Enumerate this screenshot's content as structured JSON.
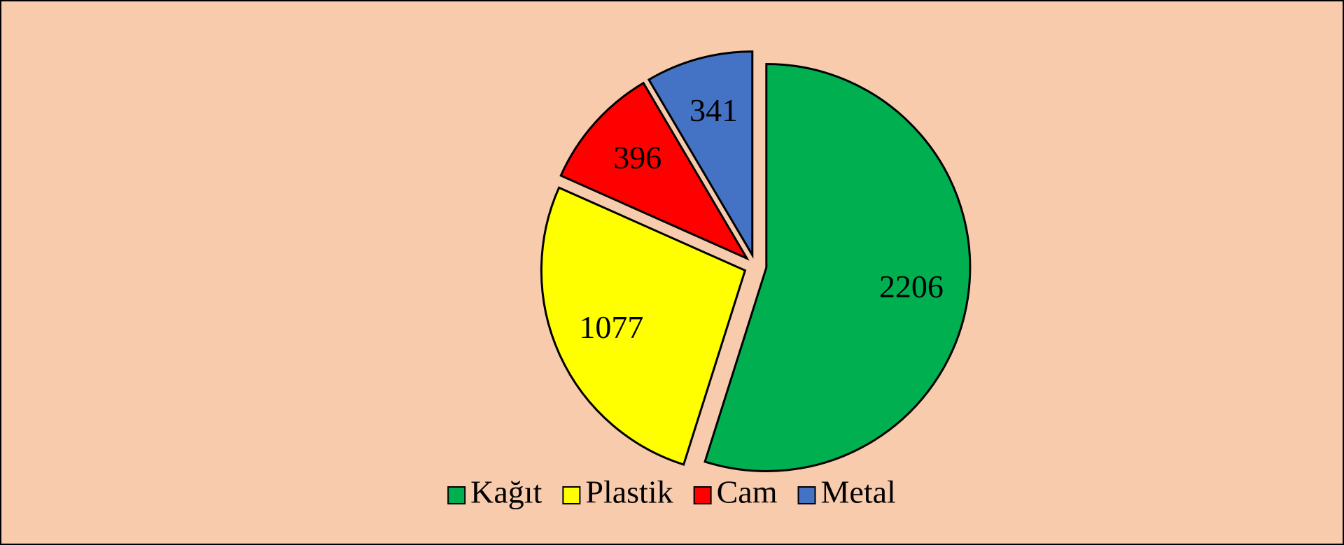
{
  "chart_data": {
    "type": "pie",
    "categories": [
      "Kağıt",
      "Plastik",
      "Cam",
      "Metal"
    ],
    "values": [
      2206,
      1077,
      396,
      341
    ],
    "colors": [
      "#00b050",
      "#ffff00",
      "#ff0000",
      "#4472c4"
    ],
    "legend": "bottom"
  }
}
